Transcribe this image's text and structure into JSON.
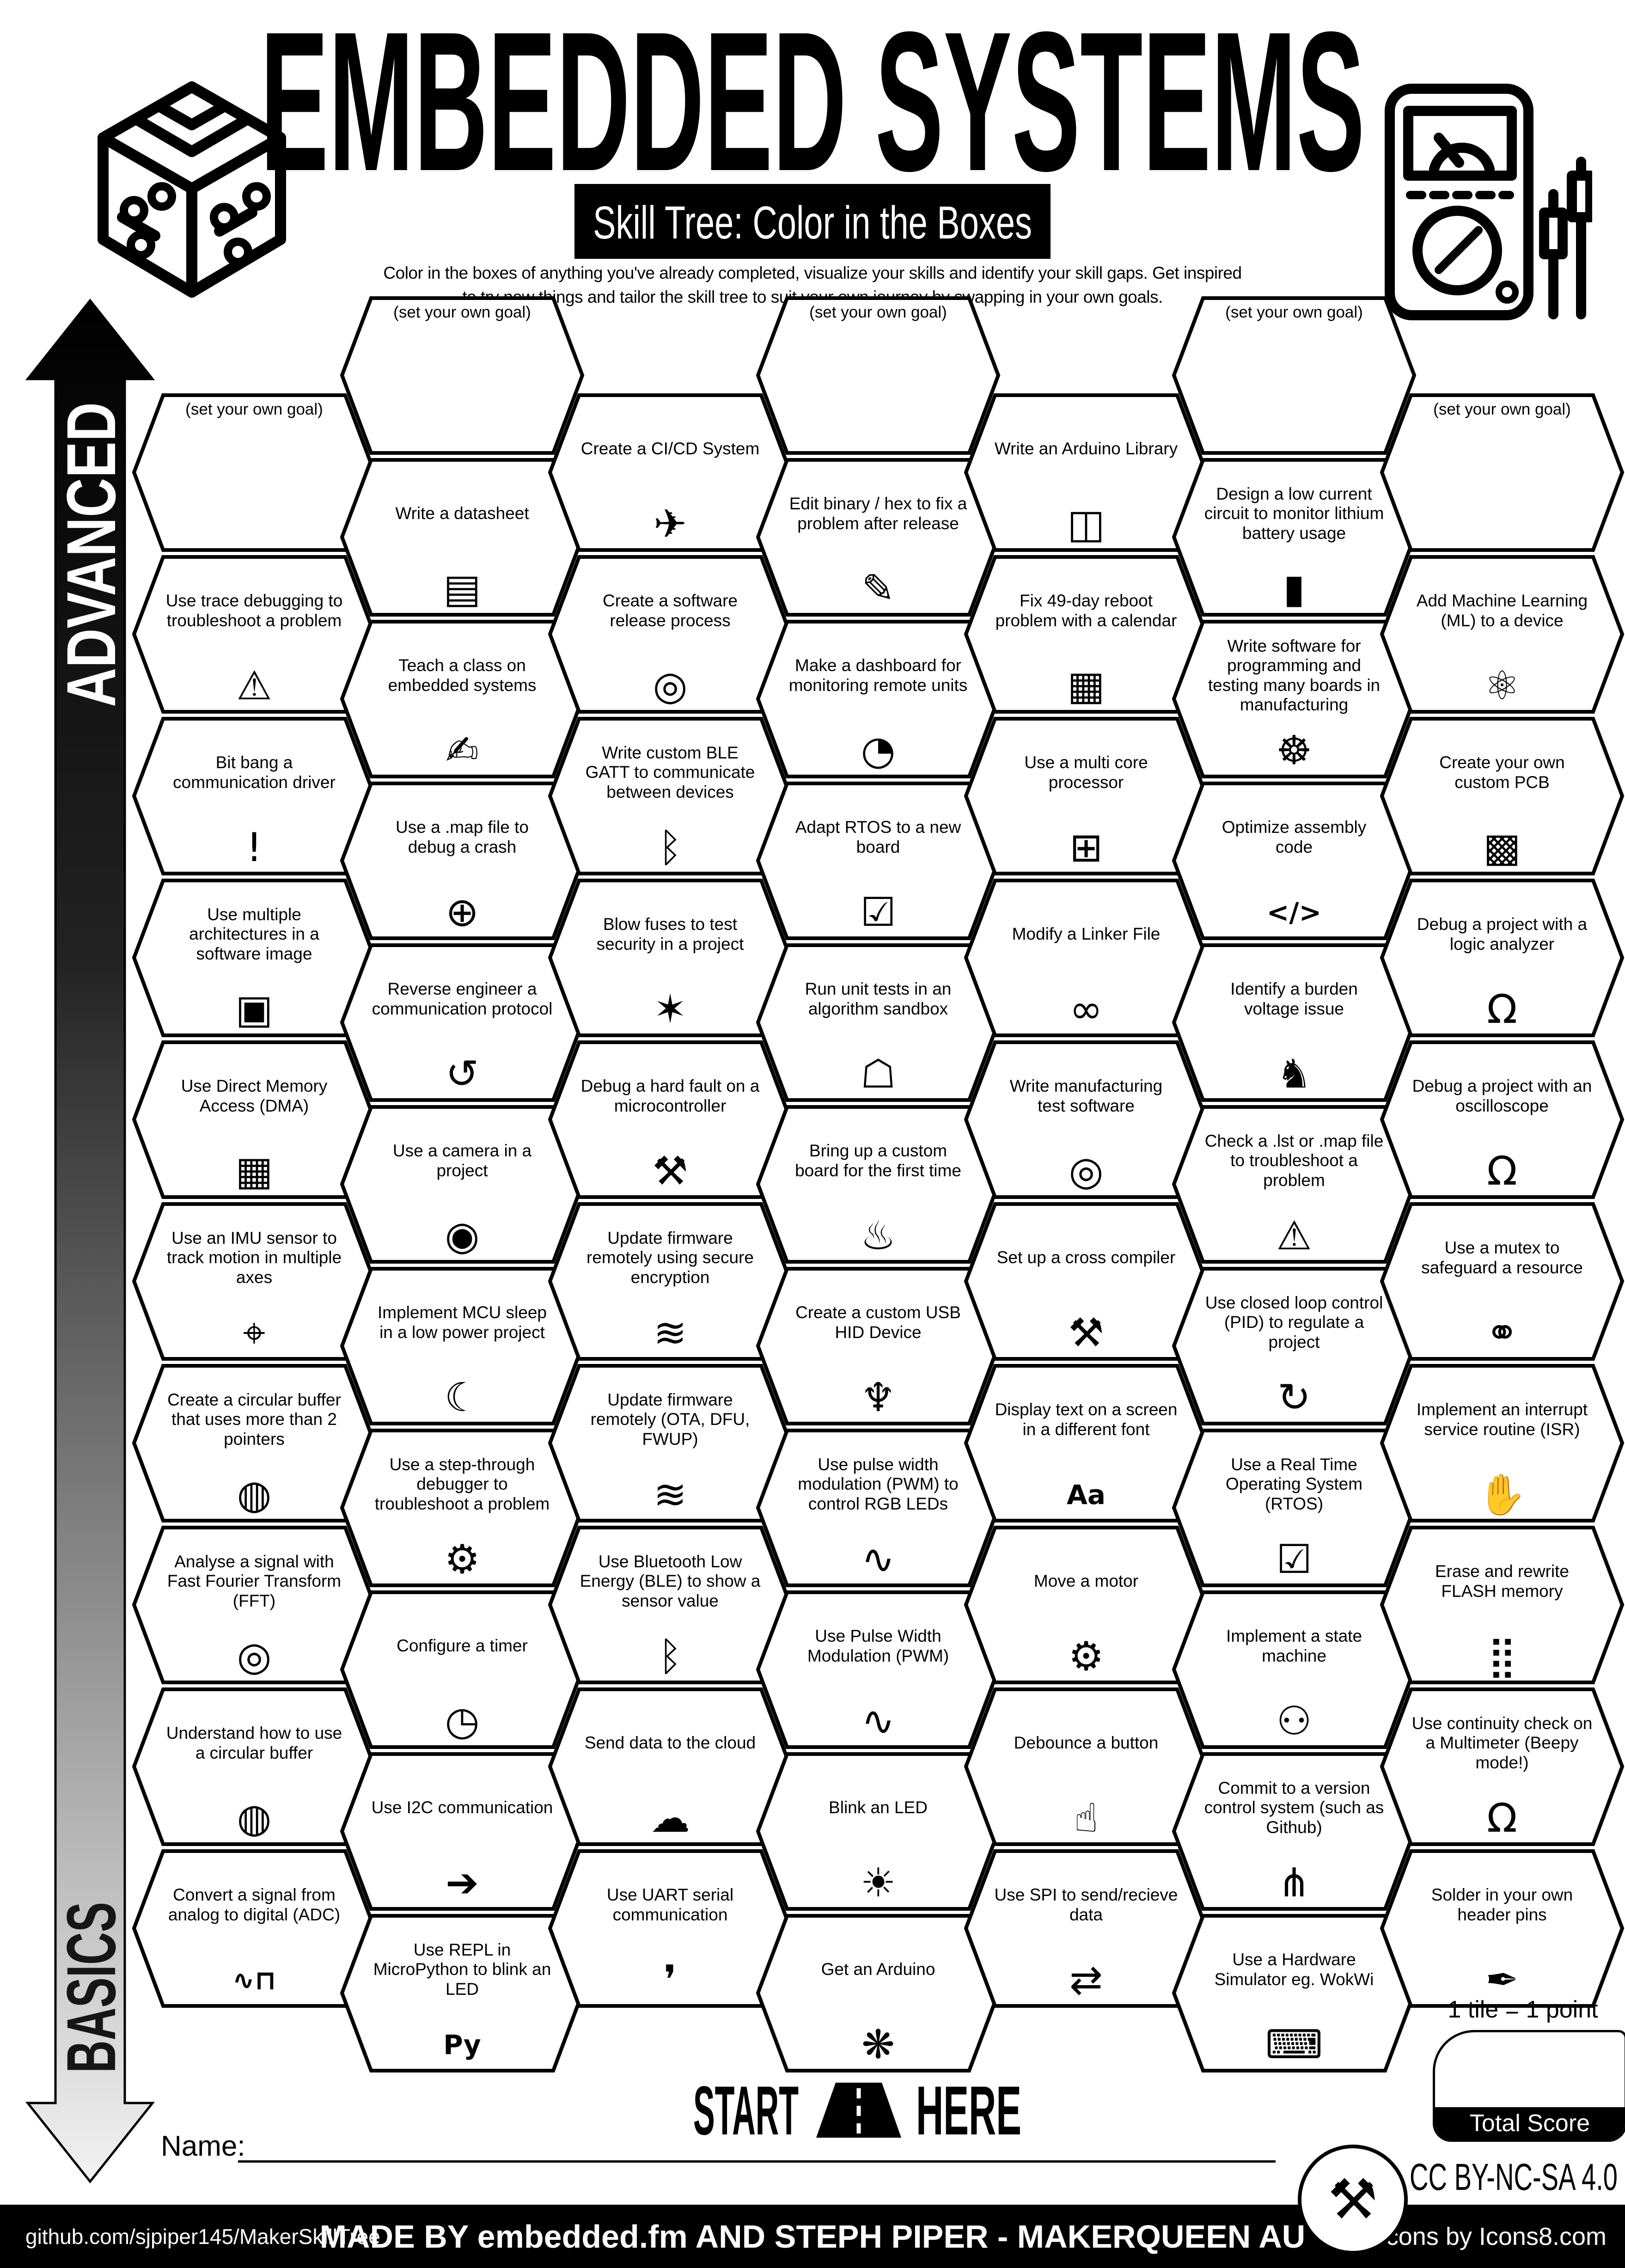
{
  "page": {
    "background": "#ffffff",
    "ink": "#000000"
  },
  "header": {
    "title": "EMBEDDED SYSTEMS",
    "subtitle": "Skill Tree: Color in the Boxes",
    "description_line1": "Color in the boxes of anything you've already completed, visualize your skills and identify your skill gaps.  Get inspired",
    "description_line2": "to try new things and tailor the skill tree to suit your own journey by swapping in your own goals.",
    "left_logo": "circuit-cube-icon",
    "right_logo": "multimeter-probes-icon"
  },
  "level_axis": {
    "top_label": "ADVANCED",
    "bottom_label": "BASICS"
  },
  "start_marker": {
    "left_word": "START",
    "right_word": "HERE",
    "icon": "road-icon"
  },
  "name_field": {
    "label": "Name:"
  },
  "scoring": {
    "note": "1 tile = 1 point",
    "box_label": "Total Score"
  },
  "license": {
    "badge_icon": "maker-tools-badge",
    "text": "CC BY-NC-SA 4.0"
  },
  "footer": {
    "left": "github.com/sjpiper145/MakerSkillTree",
    "center": "MADE BY embedded.fm AND STEPH PIPER  -  MAKERQUEEN AU",
    "right": "Icons by Icons8.com"
  },
  "grid": {
    "columns": [
      {
        "cells": [
          {
            "label": "(set your own goal)",
            "goal": true
          },
          {
            "label": "Use trace debugging to troubleshoot a problem",
            "icon": "monitor-warning-icon"
          },
          {
            "label": "Bit bang a communication driver",
            "icon": "exclamation-icon"
          },
          {
            "label": "Use multiple architectures in a software image",
            "icon": "cube-circuit-icon"
          },
          {
            "label": "Use Direct Memory Access (DMA)",
            "icon": "memory-cube-icon"
          },
          {
            "label": "Use an IMU sensor to track motion in multiple axes",
            "icon": "axes-icon"
          },
          {
            "label": "Create a circular buffer that uses more than 2 pointers",
            "icon": "ring-buffer-icon"
          },
          {
            "label": "Analyse a signal with Fast Fourier Transform (FFT)",
            "icon": "fft-lens-icon"
          },
          {
            "label": "Understand how to use a circular buffer",
            "icon": "ring-buffer-icon"
          },
          {
            "label": "Convert a signal from analog to digital (ADC)",
            "icon": "adc-wave-icon"
          }
        ]
      },
      {
        "cells": [
          {
            "label": "(set your own goal)",
            "goal": true
          },
          {
            "label": "Write a datasheet",
            "icon": "datasheet-icon"
          },
          {
            "label": "Teach a class on embedded systems",
            "icon": "teacher-icon"
          },
          {
            "label": "Use a .map file to debug a crash",
            "icon": "globe-icon"
          },
          {
            "label": "Reverse engineer a communication protocol",
            "icon": "reverse-engineer-icon"
          },
          {
            "label": "Use a camera in a project",
            "icon": "camera-icon"
          },
          {
            "label": "Implement MCU sleep in a low power project",
            "icon": "sleep-moon-icon"
          },
          {
            "label": "Use a step-through debugger to troubleshoot a problem",
            "icon": "debugger-monitor-icon"
          },
          {
            "label": "Configure a timer",
            "icon": "timer-icon"
          },
          {
            "label": "Use I2C communication",
            "icon": "i2c-arrow-icon"
          },
          {
            "label": "Use REPL in MicroPython to blink an LED",
            "icon": "python-icon"
          }
        ]
      },
      {
        "cells": [
          {
            "label": "Create a CI/CD System",
            "icon": "rocket-box-icon"
          },
          {
            "label": "Create a software release process",
            "icon": "release-disc-icon"
          },
          {
            "label": "Write custom BLE GATT to communicate between devices",
            "icon": "bluetooth-icon"
          },
          {
            "label": "Blow fuses to test security in a project",
            "icon": "burst-icon"
          },
          {
            "label": "Debug a hard fault on a microcontroller",
            "icon": "tools-icon"
          },
          {
            "label": "Update firmware remotely using secure encryption",
            "icon": "wifi-lock-icon"
          },
          {
            "label": "Update firmware remotely (OTA, DFU, FWUP)",
            "icon": "wifi-icon"
          },
          {
            "label": "Use Bluetooth Low Energy (BLE) to show a sensor value",
            "icon": "bluetooth-icon"
          },
          {
            "label": "Send data to the cloud",
            "icon": "cloud-icon"
          },
          {
            "label": "Use UART serial communication",
            "icon": "droplet-icon"
          }
        ]
      },
      {
        "cells": [
          {
            "label": "(set your own goal)",
            "goal": true
          },
          {
            "label": "Edit binary / hex to fix a problem after release",
            "icon": "pencil-icon"
          },
          {
            "label": "Make a dashboard for monitoring remote units",
            "icon": "gauge-icon"
          },
          {
            "label": "Adapt RTOS to a new board",
            "icon": "monitor-check-icon"
          },
          {
            "label": "Run unit tests in an algorithm sandbox",
            "icon": "sandbox-icon"
          },
          {
            "label": "Bring up a custom board for the first time",
            "icon": "cake-icon"
          },
          {
            "label": "Create a custom USB HID Device",
            "icon": "usb-icon"
          },
          {
            "label": "Use pulse width modulation (PWM) to control RGB LEDs",
            "icon": "pwm-wave-icon"
          },
          {
            "label": "Use Pulse Width Modulation (PWM)",
            "icon": "pwm-wave-icon"
          },
          {
            "label": "Blink an LED",
            "icon": "led-icon"
          },
          {
            "label": "Get an Arduino",
            "icon": "party-popper-icon"
          }
        ]
      },
      {
        "cells": [
          {
            "label": "Write an Arduino Library",
            "icon": "books-icon"
          },
          {
            "label": "Fix 49-day reboot problem with a calendar",
            "icon": "calendar-icon"
          },
          {
            "label": "Use a multi core processor",
            "icon": "chip-cube-icon"
          },
          {
            "label": "Modify a Linker File",
            "icon": "chain-link-icon"
          },
          {
            "label": "Write manufacturing test software",
            "icon": "release-disc-icon"
          },
          {
            "label": "Set up a cross compiler",
            "icon": "tools-icon"
          },
          {
            "label": "Display text on a screen in a different font",
            "icon": "font-icon"
          },
          {
            "label": "Move a motor",
            "icon": "motor-icon"
          },
          {
            "label": "Debounce a button",
            "icon": "press-finger-icon"
          },
          {
            "label": "Use SPI to send/recieve data",
            "icon": "spi-arrows-icon"
          }
        ]
      },
      {
        "cells": [
          {
            "label": "(set your own goal)",
            "goal": true
          },
          {
            "label": "Design a low current circuit to monitor lithium battery usage",
            "icon": "battery-icon"
          },
          {
            "label": "Write software for programming and testing many boards in manufacturing",
            "icon": "octopus-icon"
          },
          {
            "label": "Optimize assembly code",
            "icon": "code-icon"
          },
          {
            "label": "Identify a burden voltage issue",
            "icon": "donkey-icon"
          },
          {
            "label": "Check a .lst or .map file to troubleshoot a problem",
            "icon": "monitor-warning-icon"
          },
          {
            "label": "Use closed loop control (PID) to regulate a project",
            "icon": "pid-loop-icon"
          },
          {
            "label": "Use a Real Time Operating System (RTOS)",
            "icon": "monitor-check-icon"
          },
          {
            "label": "Implement a state machine",
            "icon": "robot-icon"
          },
          {
            "label": "Commit to a version control system (such as Github)",
            "icon": "git-branch-icon"
          },
          {
            "label": "Use a Hardware Simulator eg. WokWi",
            "icon": "laptop-sim-icon"
          }
        ]
      },
      {
        "cells": [
          {
            "label": "(set your own goal)",
            "goal": true
          },
          {
            "label": "Add Machine Learning (ML) to a device",
            "icon": "ml-head-icon"
          },
          {
            "label": "Create your own custom PCB",
            "icon": "pcb-icon"
          },
          {
            "label": "Debug a project with a logic analyzer",
            "icon": "multimeter-icon"
          },
          {
            "label": "Debug a project with an oscilloscope",
            "icon": "multimeter-icon"
          },
          {
            "label": "Use a mutex to safeguard a resource",
            "icon": "handshake-icon"
          },
          {
            "label": "Implement an interrupt service routine (ISR)",
            "icon": "hand-icon"
          },
          {
            "label": "Erase and rewrite FLASH memory",
            "icon": "flash-chip-icon"
          },
          {
            "label": "Use continuity check on a Multimeter (Beepy mode!)",
            "icon": "multimeter-icon"
          },
          {
            "label": "Solder in your own header pins",
            "icon": "soldering-icon"
          }
        ]
      }
    ]
  }
}
